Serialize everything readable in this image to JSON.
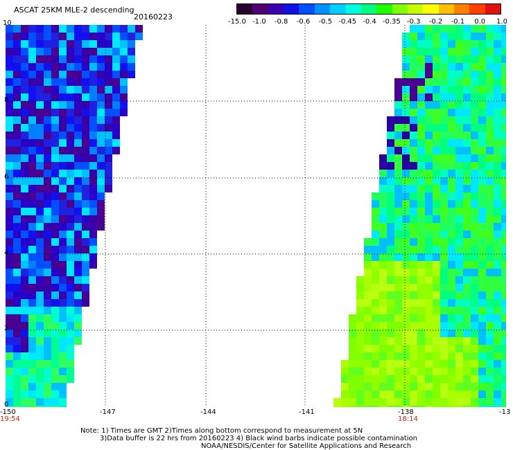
{
  "header": {
    "title": "ASCAT 25KM MLE-2 descending",
    "date": "20160223"
  },
  "colorbar": {
    "labels": [
      "-15.0",
      "-1.0",
      "-0.8",
      "-0.6",
      "-0.5",
      "-0.45",
      "-0.4",
      "-0.35",
      "-0.3",
      "-0.2",
      "-0.1",
      "0.0",
      "1.0"
    ],
    "colors": [
      "#2a0030",
      "#500070",
      "#3a00b0",
      "#1010e0",
      "#0050ff",
      "#0090ff",
      "#00d0ff",
      "#00ffe0",
      "#00ff80",
      "#20ff00",
      "#80ff00",
      "#c8ff00",
      "#ffff00",
      "#ffc000",
      "#ff8000",
      "#ff4000",
      "#e01010"
    ]
  },
  "axes": {
    "x_ticks": [
      "-150",
      "-147",
      "-144",
      "-141",
      "-138",
      "-13"
    ],
    "y_ticks": [
      "0",
      "2",
      "4",
      "6",
      "8",
      "10"
    ],
    "times": [
      "19:54",
      "18:14"
    ]
  },
  "footer": {
    "note_line1": "Note: 1) Times are GMT 2)Times along bottom correspond to measurement at 5N",
    "note_line2": "3)Data buffer is 22 hrs from 20160223 4) Black wind barbs indicate possible contamination",
    "note_line3": "NOAA/NESDIS/Center for Satellite Applications and Research"
  }
}
